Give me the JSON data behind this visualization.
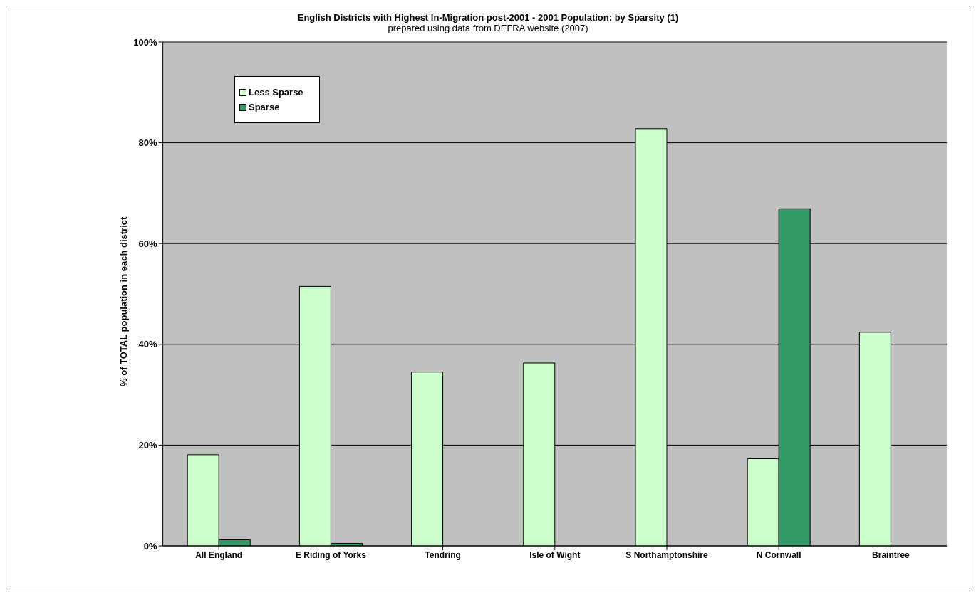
{
  "chart_data": {
    "type": "bar",
    "title": "English Districts with Highest In-Migration post-2001 - 2001 Population: by Sparsity (1)",
    "subtitle": "prepared using data from DEFRA website (2007)",
    "ylabel": "% of TOTAL population in each district",
    "categories": [
      "All England",
      "E Riding of Yorks",
      "Tendring",
      "Isle of Wight",
      "S Northamptonshire",
      "N Cornwall",
      "Braintree"
    ],
    "series": [
      {
        "name": "Less Sparse",
        "color": "#ccffcc",
        "values": [
          18.1,
          51.5,
          34.5,
          36.3,
          82.8,
          17.3,
          42.4
        ]
      },
      {
        "name": "Sparse",
        "color": "#339966",
        "values": [
          1.2,
          0.5,
          null,
          null,
          null,
          66.9,
          null
        ]
      }
    ],
    "ylim": [
      0,
      100
    ],
    "yticks": [
      {
        "value": 0,
        "label": "0%"
      },
      {
        "value": 20,
        "label": "20%"
      },
      {
        "value": 40,
        "label": "40%"
      },
      {
        "value": 60,
        "label": "60%"
      },
      {
        "value": 80,
        "label": "80%"
      },
      {
        "value": 100,
        "label": "100%"
      }
    ],
    "grid": "y",
    "legend": "top left"
  }
}
